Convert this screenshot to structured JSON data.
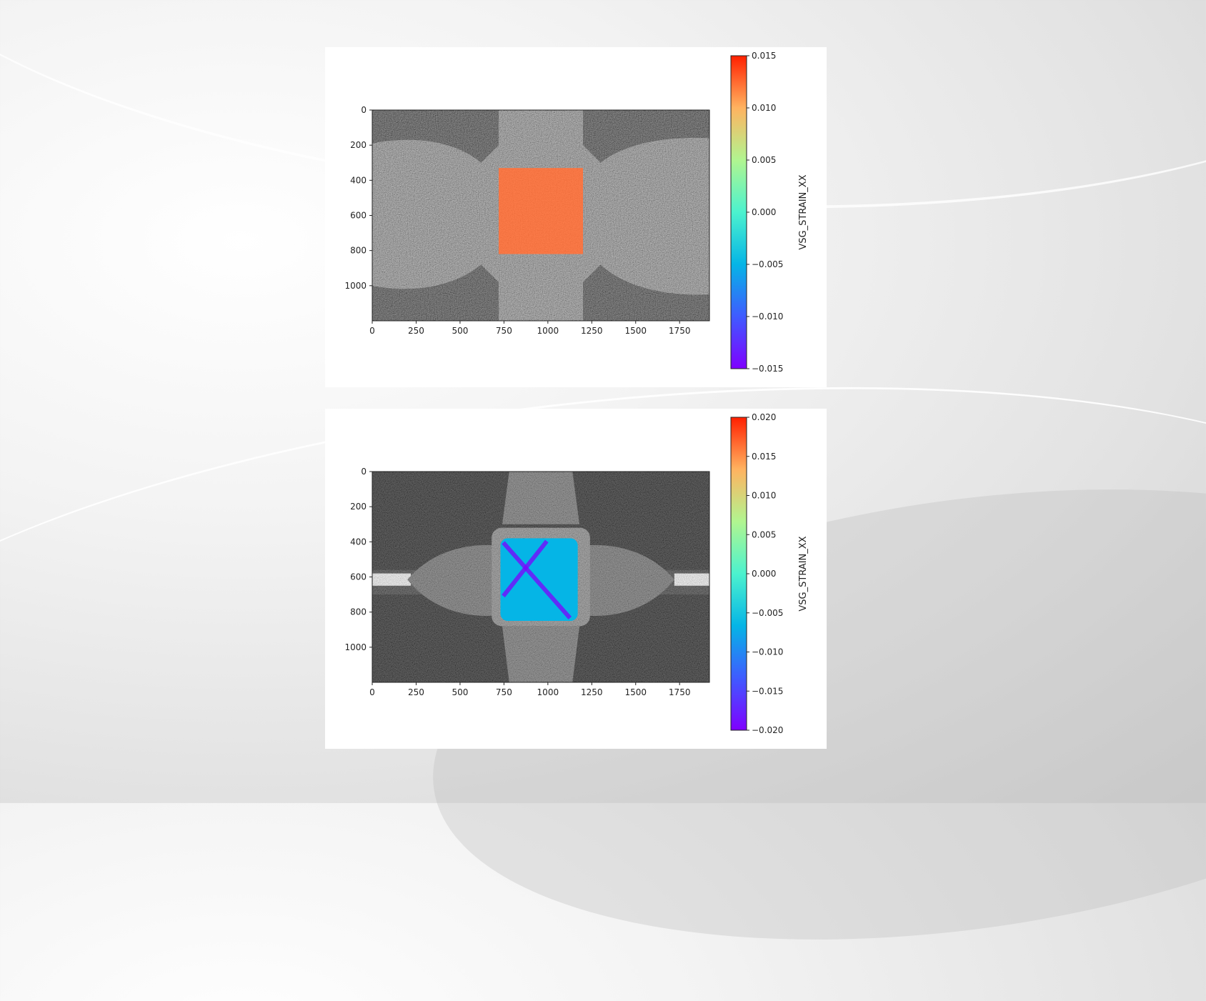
{
  "colors": {
    "rainbow_stops": [
      "#7f00ff",
      "#3f5bff",
      "#05b5e6",
      "#4cf2ce",
      "#b1f590",
      "#ffb360",
      "#ff2000"
    ],
    "overlay_top": "#ff6a30"
  },
  "chart_data": [
    {
      "type": "heatmap",
      "title": "",
      "xlabel": "",
      "ylabel": "",
      "xlim": [
        0,
        1920
      ],
      "ylim": [
        1200,
        0
      ],
      "x_ticks": [
        "0",
        "250",
        "500",
        "750",
        "1000",
        "1250",
        "1500",
        "1750"
      ],
      "x_tick_values": [
        0,
        250,
        500,
        750,
        1000,
        1250,
        1500,
        1750
      ],
      "y_ticks": [
        "0",
        "200",
        "400",
        "600",
        "800",
        "1000"
      ],
      "y_tick_values": [
        0,
        200,
        400,
        600,
        800,
        1000
      ],
      "colorbar": {
        "label": "VSG_STRAIN_XX",
        "min": -0.015,
        "max": 0.015,
        "ticks": [
          "0.015",
          "0.010",
          "0.005",
          "0.000",
          "−0.005",
          "−0.010",
          "−0.015"
        ],
        "tick_values": [
          0.015,
          0.01,
          0.005,
          0,
          -0.005,
          -0.01,
          -0.015
        ]
      },
      "strain_region": {
        "x": [
          720,
          1200
        ],
        "y": [
          330,
          820
        ],
        "value": 0.0135
      }
    },
    {
      "type": "heatmap",
      "title": "",
      "xlabel": "",
      "ylabel": "",
      "xlim": [
        0,
        1920
      ],
      "ylim": [
        1200,
        0
      ],
      "x_ticks": [
        "0",
        "250",
        "500",
        "750",
        "1000",
        "1250",
        "1500",
        "1750"
      ],
      "x_tick_values": [
        0,
        250,
        500,
        750,
        1000,
        1250,
        1500,
        1750
      ],
      "y_ticks": [
        "0",
        "200",
        "400",
        "600",
        "800",
        "1000"
      ],
      "y_tick_values": [
        0,
        200,
        400,
        600,
        800,
        1000
      ],
      "colorbar": {
        "label": "VSG_STRAIN_XX",
        "min": -0.02,
        "max": 0.02,
        "ticks": [
          "0.020",
          "0.015",
          "0.010",
          "0.005",
          "0.000",
          "−0.005",
          "−0.010",
          "−0.015",
          "−0.020"
        ],
        "tick_values": [
          0.02,
          0.015,
          0.01,
          0.005,
          0,
          -0.005,
          -0.01,
          -0.015,
          -0.02
        ]
      },
      "strain_region": {
        "x": [
          730,
          1170
        ],
        "y": [
          380,
          850
        ],
        "value": -0.009,
        "min_value": -0.02
      }
    }
  ]
}
